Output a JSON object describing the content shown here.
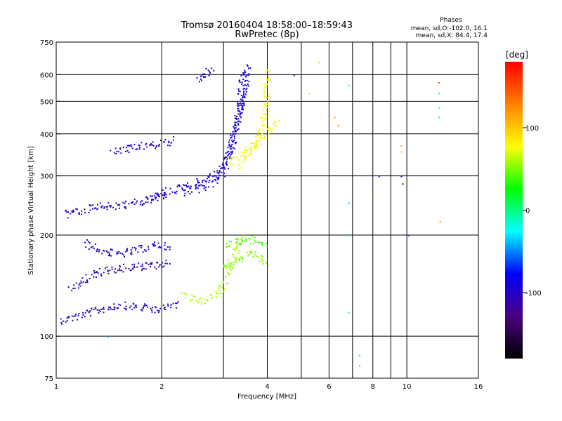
{
  "chart_data": {
    "type": "scatter",
    "title": "Tromsø 20160404 18:58:00–18:59:43",
    "subtitle": "RwPretec (8p)",
    "xlabel": "Frequency [MHz]",
    "ylabel": "Stationary phase Virtual Height [km]",
    "x_scale": "log",
    "y_scale": "log",
    "xlim": [
      1,
      16
    ],
    "ylim": [
      75,
      750
    ],
    "x_ticks": [
      1,
      2,
      4,
      6,
      8,
      10,
      16
    ],
    "x_tick_labels": [
      "1",
      "2",
      "4",
      "6",
      "8",
      "10",
      "16"
    ],
    "x_grid": [
      1,
      2,
      3,
      4,
      5,
      6,
      7,
      8,
      9,
      10,
      16
    ],
    "y_ticks": [
      75,
      100,
      200,
      300,
      400,
      500,
      600,
      750
    ],
    "y_tick_labels": [
      "75",
      "100",
      "200",
      "300",
      "400",
      "500",
      "600",
      "750"
    ],
    "y_grid": [
      100,
      200,
      300,
      400,
      500,
      600
    ],
    "grid": true,
    "stats": {
      "heading": "Phases",
      "o_line": "mean, sd,O:-102.0, 16.1",
      "x_line": "mean, sd,X:  84.4, 17.4"
    },
    "colorbar": {
      "label": "[deg]",
      "range": [
        -180,
        180
      ],
      "ticks": [
        100,
        0,
        -100
      ],
      "tick_labels": [
        "100",
        "0",
        "-100"
      ],
      "colors": [
        "#ff0000",
        "#ff8000",
        "#ffff00",
        "#00ff00",
        "#00ffff",
        "#0000ff",
        "#4b0082",
        "#000000"
      ]
    },
    "traces": [
      {
        "name": "",
        "phase": -105,
        "points": [
          [
            1.02,
            112
          ],
          [
            1.1,
            114
          ],
          [
            1.2,
            117
          ],
          [
            1.35,
            121
          ],
          [
            1.5,
            124
          ],
          [
            1.7,
            123
          ],
          [
            1.9,
            121
          ],
          [
            2.05,
            122
          ],
          [
            2.2,
            126
          ]
        ]
      },
      {
        "name": "",
        "phase": -108,
        "points": [
          [
            1.1,
            140
          ],
          [
            1.25,
            152
          ],
          [
            1.4,
            158
          ],
          [
            1.55,
            160
          ],
          [
            1.75,
            162
          ],
          [
            1.95,
            163
          ],
          [
            2.1,
            165
          ]
        ]
      },
      {
        "name": "",
        "phase": -100,
        "points": [
          [
            1.2,
            190
          ],
          [
            1.35,
            180
          ],
          [
            1.5,
            176
          ],
          [
            1.65,
            180
          ],
          [
            1.8,
            184
          ],
          [
            1.95,
            188
          ],
          [
            2.1,
            185
          ]
        ]
      },
      {
        "name": "",
        "phase": -102,
        "points": [
          [
            1.05,
            232
          ],
          [
            1.15,
            236
          ],
          [
            1.3,
            246
          ],
          [
            1.45,
            244
          ],
          [
            1.6,
            248
          ],
          [
            1.75,
            252
          ],
          [
            1.95,
            262
          ],
          [
            2.1,
            266
          ]
        ]
      },
      {
        "name": "",
        "phase": -98,
        "points": [
          [
            1.45,
            355
          ],
          [
            1.6,
            362
          ],
          [
            1.8,
            370
          ],
          [
            1.95,
            372
          ],
          [
            2.05,
            378
          ],
          [
            2.15,
            385
          ]
        ]
      },
      {
        "name": "",
        "phase": -95,
        "points": [
          [
            1.85,
            255
          ],
          [
            1.95,
            262
          ],
          [
            2.1,
            272
          ],
          [
            2.3,
            280
          ],
          [
            2.55,
            288
          ],
          [
            2.75,
            300
          ],
          [
            2.95,
            318
          ],
          [
            3.1,
            350
          ],
          [
            3.2,
            400
          ],
          [
            3.28,
            460
          ],
          [
            3.35,
            530
          ],
          [
            3.4,
            610
          ]
        ]
      },
      {
        "name": "",
        "phase": -88,
        "points": [
          [
            2.3,
            268
          ],
          [
            2.55,
            276
          ],
          [
            2.75,
            286
          ],
          [
            2.95,
            300
          ],
          [
            3.05,
            330
          ],
          [
            3.15,
            370
          ],
          [
            3.25,
            420
          ],
          [
            3.35,
            480
          ],
          [
            3.45,
            560
          ],
          [
            3.5,
            640
          ]
        ]
      },
      {
        "name": "",
        "phase": -80,
        "points": [
          [
            2.5,
            585
          ],
          [
            2.6,
            598
          ],
          [
            2.7,
            610
          ],
          [
            2.8,
            620
          ]
        ]
      },
      {
        "name": "",
        "phase": 75,
        "points": [
          [
            3.3,
            320
          ],
          [
            3.45,
            340
          ],
          [
            3.6,
            360
          ],
          [
            3.75,
            385
          ],
          [
            3.85,
            420
          ],
          [
            3.92,
            470
          ],
          [
            3.96,
            540
          ],
          [
            4.0,
            620
          ]
        ]
      },
      {
        "name": "",
        "phase": 82,
        "points": [
          [
            3.1,
            330
          ],
          [
            3.3,
            345
          ],
          [
            3.5,
            360
          ],
          [
            3.7,
            372
          ],
          [
            3.85,
            390
          ],
          [
            4.0,
            405
          ],
          [
            4.15,
            420
          ],
          [
            4.3,
            440
          ]
        ]
      },
      {
        "name": "",
        "phase": 60,
        "points": [
          [
            2.3,
            134
          ],
          [
            2.45,
            130
          ],
          [
            2.6,
            128
          ],
          [
            2.8,
            132
          ],
          [
            2.95,
            140
          ],
          [
            3.05,
            150
          ],
          [
            3.15,
            165
          ],
          [
            3.25,
            180
          ],
          [
            3.35,
            195
          ]
        ]
      },
      {
        "name": "",
        "phase": 50,
        "points": [
          [
            3.0,
            162
          ],
          [
            3.2,
            168
          ],
          [
            3.4,
            172
          ],
          [
            3.6,
            176
          ],
          [
            3.8,
            170
          ],
          [
            3.95,
            166
          ]
        ]
      },
      {
        "name": "",
        "phase": 40,
        "points": [
          [
            3.05,
            188
          ],
          [
            3.25,
            192
          ],
          [
            3.45,
            196
          ],
          [
            3.65,
            194
          ],
          [
            3.85,
            192
          ],
          [
            3.95,
            190
          ]
        ]
      }
    ],
    "scattered": [
      {
        "x": 4.75,
        "y": 600,
        "phase": -95
      },
      {
        "x": 5.6,
        "y": 655,
        "phase": 100
      },
      {
        "x": 5.25,
        "y": 530,
        "phase": 60
      },
      {
        "x": 6.2,
        "y": 450,
        "phase": 120
      },
      {
        "x": 6.35,
        "y": 425,
        "phase": 130
      },
      {
        "x": 6.8,
        "y": 560,
        "phase": -10
      },
      {
        "x": 6.8,
        "y": 250,
        "phase": -40
      },
      {
        "x": 6.8,
        "y": 200,
        "phase": -20
      },
      {
        "x": 6.8,
        "y": 118,
        "phase": 10
      },
      {
        "x": 7.3,
        "y": 88,
        "phase": 10
      },
      {
        "x": 7.3,
        "y": 82,
        "phase": 10
      },
      {
        "x": 8.3,
        "y": 300,
        "phase": -80
      },
      {
        "x": 8.0,
        "y": 265,
        "phase": 100
      },
      {
        "x": 9.6,
        "y": 370,
        "phase": 100
      },
      {
        "x": 9.6,
        "y": 355,
        "phase": 90
      },
      {
        "x": 9.6,
        "y": 300,
        "phase": -80
      },
      {
        "x": 9.7,
        "y": 285,
        "phase": -120
      },
      {
        "x": 10.1,
        "y": 200,
        "phase": -60
      },
      {
        "x": 12.3,
        "y": 570,
        "phase": 150
      },
      {
        "x": 12.3,
        "y": 530,
        "phase": -10
      },
      {
        "x": 12.3,
        "y": 480,
        "phase": -10
      },
      {
        "x": 12.3,
        "y": 450,
        "phase": -10
      },
      {
        "x": 12.4,
        "y": 220,
        "phase": 120
      },
      {
        "x": 1.4,
        "y": 100,
        "phase": -40
      }
    ]
  }
}
